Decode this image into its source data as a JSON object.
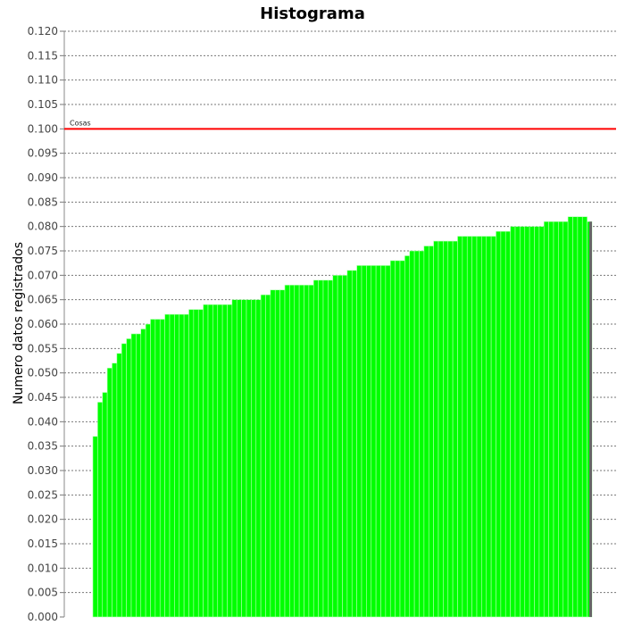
{
  "chart_data": {
    "type": "bar",
    "title": "Histograma",
    "xlabel": "",
    "ylabel": "Numero datos registrados",
    "ylim": [
      0,
      0.12
    ],
    "yticks": [
      "0.000",
      "0.005",
      "0.010",
      "0.015",
      "0.020",
      "0.025",
      "0.030",
      "0.035",
      "0.040",
      "0.045",
      "0.050",
      "0.055",
      "0.060",
      "0.065",
      "0.070",
      "0.075",
      "0.080",
      "0.085",
      "0.090",
      "0.095",
      "0.100",
      "0.105",
      "0.110",
      "0.115",
      "0.120"
    ],
    "grid": true,
    "bar_color": "#00ff00",
    "last_bar_color": "#666666",
    "values": [
      0.037,
      0.044,
      0.046,
      0.051,
      0.052,
      0.054,
      0.056,
      0.057,
      0.058,
      0.058,
      0.059,
      0.06,
      0.061,
      0.061,
      0.061,
      0.062,
      0.062,
      0.062,
      0.062,
      0.062,
      0.063,
      0.063,
      0.063,
      0.064,
      0.064,
      0.064,
      0.064,
      0.064,
      0.064,
      0.065,
      0.065,
      0.065,
      0.065,
      0.065,
      0.065,
      0.066,
      0.066,
      0.067,
      0.067,
      0.067,
      0.068,
      0.068,
      0.068,
      0.068,
      0.068,
      0.068,
      0.069,
      0.069,
      0.069,
      0.069,
      0.07,
      0.07,
      0.07,
      0.071,
      0.071,
      0.072,
      0.072,
      0.072,
      0.072,
      0.072,
      0.072,
      0.072,
      0.073,
      0.073,
      0.073,
      0.074,
      0.075,
      0.075,
      0.075,
      0.076,
      0.076,
      0.077,
      0.077,
      0.077,
      0.077,
      0.077,
      0.078,
      0.078,
      0.078,
      0.078,
      0.078,
      0.078,
      0.078,
      0.078,
      0.079,
      0.079,
      0.079,
      0.08,
      0.08,
      0.08,
      0.08,
      0.08,
      0.08,
      0.08,
      0.081,
      0.081,
      0.081,
      0.081,
      0.081,
      0.082,
      0.082,
      0.082,
      0.082,
      0.081
    ],
    "reference_line": {
      "value": 0.1,
      "label": "Cosas",
      "color": "#ff0000"
    }
  }
}
